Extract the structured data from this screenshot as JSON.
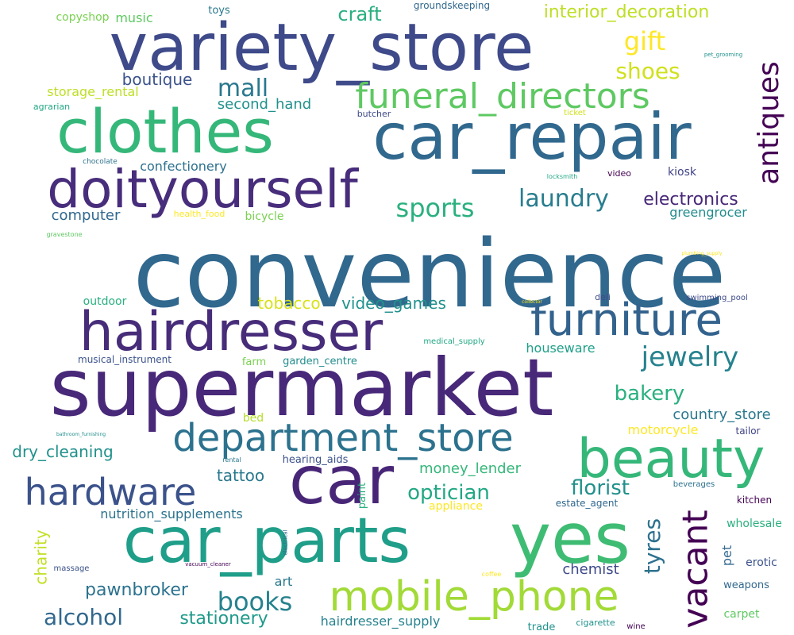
{
  "words": [
    {
      "text": "convenience",
      "color": "#31688e",
      "vertical": false
    },
    {
      "text": "supermarket",
      "color": "#482878",
      "vertical": false
    },
    {
      "text": "variety_store",
      "color": "#3e4a89",
      "vertical": false
    },
    {
      "text": "car_repair",
      "color": "#31688e",
      "vertical": false
    },
    {
      "text": "clothes",
      "color": "#35b779",
      "vertical": false
    },
    {
      "text": "doityourself",
      "color": "#472d7b",
      "vertical": false
    },
    {
      "text": "car",
      "color": "#482677",
      "vertical": false
    },
    {
      "text": "yes",
      "color": "#3fbc73",
      "vertical": false
    },
    {
      "text": "car_parts",
      "color": "#1f9e89",
      "vertical": false
    },
    {
      "text": "hairdresser",
      "color": "#472c7a",
      "vertical": false
    },
    {
      "text": "beauty",
      "color": "#35b779",
      "vertical": false
    },
    {
      "text": "department_store",
      "color": "#2c728e",
      "vertical": false
    },
    {
      "text": "furniture",
      "color": "#33638d",
      "vertical": false
    },
    {
      "text": "mobile_phone",
      "color": "#a2da37",
      "vertical": false
    },
    {
      "text": "hardware",
      "color": "#3b528b",
      "vertical": false
    },
    {
      "text": "funeral_directors",
      "color": "#5ec962",
      "vertical": false
    },
    {
      "text": "vacant",
      "color": "#440154",
      "vertical": true
    },
    {
      "text": "antiques",
      "color": "#440154",
      "vertical": true
    },
    {
      "text": "jewelry",
      "color": "#26828e",
      "vertical": false
    },
    {
      "text": "books",
      "color": "#26828e",
      "vertical": false
    },
    {
      "text": "sports",
      "color": "#2ab07f",
      "vertical": false
    },
    {
      "text": "laundry",
      "color": "#287d8e",
      "vertical": false
    },
    {
      "text": "mall",
      "color": "#2a788e",
      "vertical": false
    },
    {
      "text": "gift",
      "color": "#fde725",
      "vertical": false
    },
    {
      "text": "alcohol",
      "color": "#31688e",
      "vertical": false
    },
    {
      "text": "tyres",
      "color": "#2d708e",
      "vertical": true
    },
    {
      "text": "shoes",
      "color": "#d0e11c",
      "vertical": false
    },
    {
      "text": "bakery",
      "color": "#2ab07f",
      "vertical": false
    },
    {
      "text": "florist",
      "color": "#21918c",
      "vertical": false
    },
    {
      "text": "optician",
      "color": "#22a884",
      "vertical": false
    },
    {
      "text": "pawnbroker",
      "color": "#2c728e",
      "vertical": false
    },
    {
      "text": "stationery",
      "color": "#1f9a8a",
      "vertical": false
    },
    {
      "text": "electronics",
      "color": "#482878",
      "vertical": false
    },
    {
      "text": "craft",
      "color": "#29af7f",
      "vertical": false
    },
    {
      "text": "interior_decoration",
      "color": "#bddf26",
      "vertical": false
    },
    {
      "text": "charity",
      "color": "#c2df23",
      "vertical": true
    },
    {
      "text": "tattoo",
      "color": "#2a788e",
      "vertical": false
    },
    {
      "text": "boutique",
      "color": "#3b528b",
      "vertical": false
    },
    {
      "text": "video_games",
      "color": "#21918c",
      "vertical": false
    },
    {
      "text": "tobacco",
      "color": "#d8e219",
      "vertical": false
    },
    {
      "text": "dry_cleaning",
      "color": "#21918c",
      "vertical": false
    },
    {
      "text": "country_store",
      "color": "#2a788e",
      "vertical": false
    },
    {
      "text": "money_lender",
      "color": "#35b779",
      "vertical": false
    },
    {
      "text": "chemist",
      "color": "#3e4a89",
      "vertical": false
    },
    {
      "text": "second_hand",
      "color": "#21918c",
      "vertical": false
    },
    {
      "text": "storage_rental",
      "color": "#bddf26",
      "vertical": false
    },
    {
      "text": "art",
      "color": "#2a788e",
      "vertical": false
    },
    {
      "text": "computer",
      "color": "#31688e",
      "vertical": false
    },
    {
      "text": "pet",
      "color": "#31688e",
      "vertical": true
    },
    {
      "text": "houseware",
      "color": "#1fa088",
      "vertical": false
    },
    {
      "text": "motorcycle",
      "color": "#fde725",
      "vertical": false
    },
    {
      "text": "nutrition_supplements",
      "color": "#2c728e",
      "vertical": false
    },
    {
      "text": "greengrocer",
      "color": "#228c8d",
      "vertical": false
    },
    {
      "text": "confectionery",
      "color": "#2d708e",
      "vertical": false
    },
    {
      "text": "music",
      "color": "#5ec962",
      "vertical": false
    },
    {
      "text": "hairdresser_supply",
      "color": "#26828e",
      "vertical": false
    },
    {
      "text": "wholesale",
      "color": "#2ab07f",
      "vertical": false
    },
    {
      "text": "erotic",
      "color": "#3b528b",
      "vertical": false
    },
    {
      "text": "kiosk",
      "color": "#414487",
      "vertical": false
    },
    {
      "text": "appliance",
      "color": "#fde725",
      "vertical": false
    },
    {
      "text": "outdoor",
      "color": "#2ab07f",
      "vertical": false
    },
    {
      "text": "carpet",
      "color": "#5ec962",
      "vertical": false
    },
    {
      "text": "copyshop",
      "color": "#7ad151",
      "vertical": false
    },
    {
      "text": "bicycle",
      "color": "#7ad151",
      "vertical": false
    },
    {
      "text": "bed",
      "color": "#b5de2b",
      "vertical": false
    },
    {
      "text": "hearing_aids",
      "color": "#3b528b",
      "vertical": false
    },
    {
      "text": "weapons",
      "color": "#31688e",
      "vertical": false
    },
    {
      "text": "trade",
      "color": "#21918c",
      "vertical": false
    },
    {
      "text": "garden_centre",
      "color": "#228c8d",
      "vertical": false
    },
    {
      "text": "toys",
      "color": "#2a788e",
      "vertical": false
    },
    {
      "text": "paint",
      "color": "#2ab07f",
      "vertical": true
    },
    {
      "text": "estate_agent",
      "color": "#31688e",
      "vertical": false
    },
    {
      "text": "farm",
      "color": "#7ad151",
      "vertical": false
    },
    {
      "text": "musical_instrument",
      "color": "#3b528b",
      "vertical": false
    },
    {
      "text": "tailor",
      "color": "#414487",
      "vertical": false
    },
    {
      "text": "kitchen",
      "color": "#440154",
      "vertical": false
    },
    {
      "text": "groundskeeping",
      "color": "#31688e",
      "vertical": false
    },
    {
      "text": "agrarian",
      "color": "#22a884",
      "vertical": false
    },
    {
      "text": "butcher",
      "color": "#3e4a89",
      "vertical": false
    },
    {
      "text": "cigarette",
      "color": "#21918c",
      "vertical": false
    },
    {
      "text": "health_food",
      "color": "#fde725",
      "vertical": false
    },
    {
      "text": "deli",
      "color": "#3e4a89",
      "vertical": false
    },
    {
      "text": "video",
      "color": "#440154",
      "vertical": false
    },
    {
      "text": "swimming_pool",
      "color": "#3e4a89",
      "vertical": false
    },
    {
      "text": "beverages",
      "color": "#2c728e",
      "vertical": false
    },
    {
      "text": "wine",
      "color": "#440154",
      "vertical": false
    },
    {
      "text": "medical_supply",
      "color": "#22a884",
      "vertical": false
    },
    {
      "text": "massage",
      "color": "#3b528b",
      "vertical": false
    },
    {
      "text": "ticket",
      "color": "#d0e11c",
      "vertical": false
    },
    {
      "text": "chocolate",
      "color": "#2c728e",
      "vertical": false
    },
    {
      "text": "locksmith",
      "color": "#22a884",
      "vertical": false
    },
    {
      "text": "gravestone",
      "color": "#5ec962",
      "vertical": false
    },
    {
      "text": "rental",
      "color": "#2a788e",
      "vertical": false
    },
    {
      "text": "coffee",
      "color": "#fde725",
      "vertical": false
    },
    {
      "text": "pet_grooming",
      "color": "#21918c",
      "vertical": false
    },
    {
      "text": "plumbing_supply",
      "color": "#fde725",
      "vertical": false
    },
    {
      "text": "collector",
      "color": "#fde725",
      "vertical": false
    },
    {
      "text": "bathroom_furnishing",
      "color": "#228c8d",
      "vertical": false
    },
    {
      "text": "vacuum_cleaner",
      "color": "#440154",
      "vertical": false
    },
    {
      "text": "electrical",
      "color": "#31688e",
      "vertical": true
    }
  ]
}
